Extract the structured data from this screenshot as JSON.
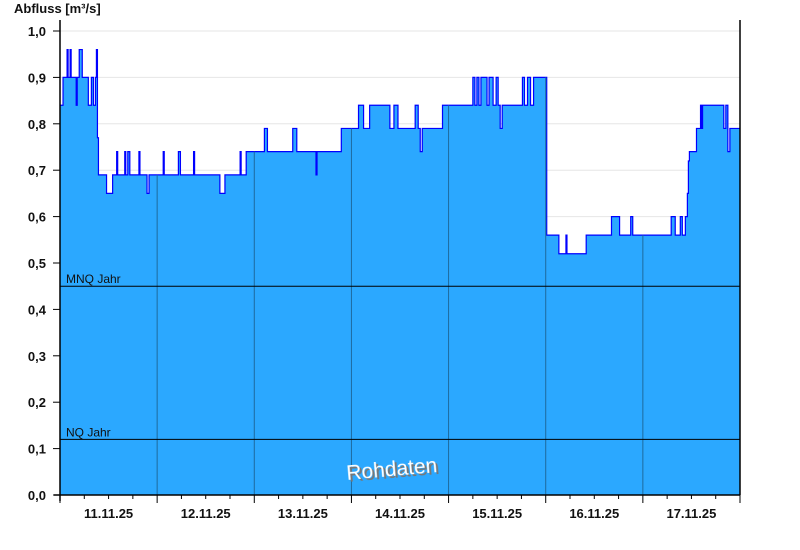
{
  "chart_data": {
    "type": "area",
    "ylabel": "Abfluss [m³/s]",
    "ylim": [
      0,
      1.0
    ],
    "yticks": [
      "0,0",
      "0,1",
      "0,2",
      "0,3",
      "0,4",
      "0,5",
      "0,6",
      "0,7",
      "0,8",
      "0,9",
      "1,0"
    ],
    "xlim": [
      "11.11.25 00:00",
      "18.11.25 00:00"
    ],
    "xtick_labels": [
      "11.11.25",
      "12.11.25",
      "13.11.25",
      "14.11.25",
      "15.11.25",
      "16.11.25",
      "17.11.25"
    ],
    "grid": "horizontal",
    "fill_color": "#2ba8ff",
    "line_color": "#0000ff",
    "watermark": "Rohdaten",
    "reference_lines": [
      {
        "label": "MNQ Jahr",
        "value": 0.45
      },
      {
        "label": "NQ Jahr",
        "value": 0.12
      }
    ],
    "steps": [
      [
        "11.11.25 00:00",
        0.84
      ],
      [
        "11.11.25 00:45",
        0.9
      ],
      [
        "11.11.25 01:45",
        0.96
      ],
      [
        "11.11.25 02:00",
        0.9
      ],
      [
        "11.11.25 02:30",
        0.96
      ],
      [
        "11.11.25 02:45",
        0.9
      ],
      [
        "11.11.25 04:00",
        0.84
      ],
      [
        "11.11.25 04:15",
        0.9
      ],
      [
        "11.11.25 04:45",
        0.96
      ],
      [
        "11.11.25 05:30",
        0.9
      ],
      [
        "11.11.25 07:00",
        0.84
      ],
      [
        "11.11.25 07:45",
        0.9
      ],
      [
        "11.11.25 08:15",
        0.84
      ],
      [
        "11.11.25 08:45",
        0.9
      ],
      [
        "11.11.25 09:00",
        0.96
      ],
      [
        "11.11.25 09:15",
        0.77
      ],
      [
        "11.11.25 09:30",
        0.69
      ],
      [
        "11.11.25 11:30",
        0.65
      ],
      [
        "11.11.25 13:00",
        0.69
      ],
      [
        "11.11.25 14:00",
        0.74
      ],
      [
        "11.11.25 14:15",
        0.69
      ],
      [
        "11.11.25 16:00",
        0.74
      ],
      [
        "11.11.25 16:15",
        0.69
      ],
      [
        "11.11.25 16:45",
        0.74
      ],
      [
        "11.11.25 17:15",
        0.69
      ],
      [
        "11.11.25 19:30",
        0.74
      ],
      [
        "11.11.25 19:45",
        0.69
      ],
      [
        "11.11.25 21:30",
        0.65
      ],
      [
        "11.11.25 22:00",
        0.69
      ],
      [
        "12.11.25 01:30",
        0.74
      ],
      [
        "12.11.25 01:45",
        0.69
      ],
      [
        "12.11.25 05:15",
        0.74
      ],
      [
        "12.11.25 05:45",
        0.69
      ],
      [
        "12.11.25 09:00",
        0.74
      ],
      [
        "12.11.25 09:15",
        0.69
      ],
      [
        "12.11.25 15:30",
        0.65
      ],
      [
        "12.11.25 16:45",
        0.69
      ],
      [
        "12.11.25 20:30",
        0.74
      ],
      [
        "12.11.25 20:45",
        0.69
      ],
      [
        "12.11.25 22:00",
        0.74
      ],
      [
        "13.11.25 02:30",
        0.79
      ],
      [
        "13.11.25 03:15",
        0.74
      ],
      [
        "13.11.25 09:30",
        0.79
      ],
      [
        "13.11.25 10:30",
        0.74
      ],
      [
        "13.11.25 15:15",
        0.69
      ],
      [
        "13.11.25 15:30",
        0.74
      ],
      [
        "13.11.25 21:30",
        0.79
      ],
      [
        "14.11.25 01:45",
        0.84
      ],
      [
        "14.11.25 03:00",
        0.79
      ],
      [
        "14.11.25 04:30",
        0.84
      ],
      [
        "14.11.25 09:30",
        0.79
      ],
      [
        "14.11.25 10:30",
        0.84
      ],
      [
        "14.11.25 11:30",
        0.79
      ],
      [
        "14.11.25 15:45",
        0.84
      ],
      [
        "14.11.25 16:30",
        0.79
      ],
      [
        "14.11.25 17:00",
        0.74
      ],
      [
        "14.11.25 17:30",
        0.79
      ],
      [
        "14.11.25 22:30",
        0.84
      ],
      [
        "15.11.25 06:00",
        0.9
      ],
      [
        "15.11.25 06:30",
        0.84
      ],
      [
        "15.11.25 07:00",
        0.9
      ],
      [
        "15.11.25 07:30",
        0.84
      ],
      [
        "15.11.25 08:00",
        0.9
      ],
      [
        "15.11.25 09:30",
        0.84
      ],
      [
        "15.11.25 10:00",
        0.9
      ],
      [
        "15.11.25 11:00",
        0.84
      ],
      [
        "15.11.25 11:45",
        0.9
      ],
      [
        "15.11.25 12:15",
        0.84
      ],
      [
        "15.11.25 12:45",
        0.79
      ],
      [
        "15.11.25 13:15",
        0.84
      ],
      [
        "15.11.25 18:15",
        0.9
      ],
      [
        "15.11.25 18:45",
        0.84
      ],
      [
        "15.11.25 19:30",
        0.9
      ],
      [
        "15.11.25 20:15",
        0.84
      ],
      [
        "15.11.25 21:00",
        0.9
      ],
      [
        "16.11.25 00:15",
        0.56
      ],
      [
        "16.11.25 03:15",
        0.52
      ],
      [
        "16.11.25 05:00",
        0.56
      ],
      [
        "16.11.25 05:15",
        0.52
      ],
      [
        "16.11.25 10:00",
        0.56
      ],
      [
        "16.11.25 16:15",
        0.6
      ],
      [
        "16.11.25 18:15",
        0.56
      ],
      [
        "16.11.25 21:00",
        0.6
      ],
      [
        "16.11.25 21:30",
        0.56
      ],
      [
        "17.11.25 07:00",
        0.6
      ],
      [
        "17.11.25 08:00",
        0.56
      ],
      [
        "17.11.25 09:15",
        0.6
      ],
      [
        "17.11.25 09:45",
        0.56
      ],
      [
        "17.11.25 10:30",
        0.6
      ],
      [
        "17.11.25 11:00",
        0.65
      ],
      [
        "17.11.25 11:15",
        0.72
      ],
      [
        "17.11.25 11:30",
        0.74
      ],
      [
        "17.11.25 13:15",
        0.79
      ],
      [
        "17.11.25 14:15",
        0.84
      ],
      [
        "17.11.25 14:30",
        0.79
      ],
      [
        "17.11.25 14:45",
        0.84
      ],
      [
        "17.11.25 20:00",
        0.79
      ],
      [
        "17.11.25 20:30",
        0.84
      ],
      [
        "17.11.25 21:00",
        0.74
      ],
      [
        "17.11.25 21:30",
        0.79
      ]
    ]
  }
}
